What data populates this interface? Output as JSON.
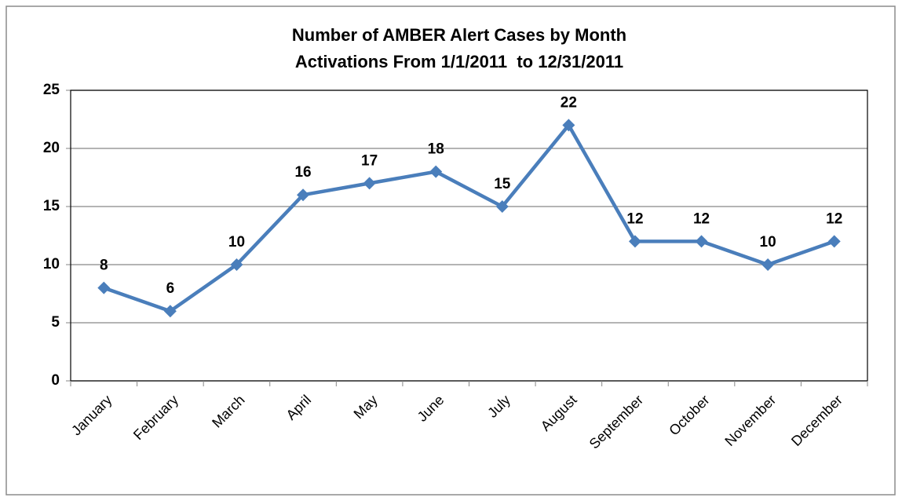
{
  "chart_data": {
    "type": "line",
    "title": "Number of AMBER Alert Cases by Month",
    "subtitle": "Activations From 1/1/2011  to 12/31/2011",
    "categories": [
      "January",
      "February",
      "March",
      "April",
      "May",
      "June",
      "July",
      "August",
      "September",
      "October",
      "November",
      "December"
    ],
    "series": [
      {
        "name": "Cases",
        "color": "#4a7ebb",
        "values": [
          8,
          6,
          10,
          16,
          17,
          18,
          15,
          22,
          12,
          12,
          10,
          12
        ]
      }
    ],
    "ylim": [
      0,
      25
    ],
    "yticks": [
      0,
      5,
      10,
      15,
      20,
      25
    ],
    "grid": true
  }
}
